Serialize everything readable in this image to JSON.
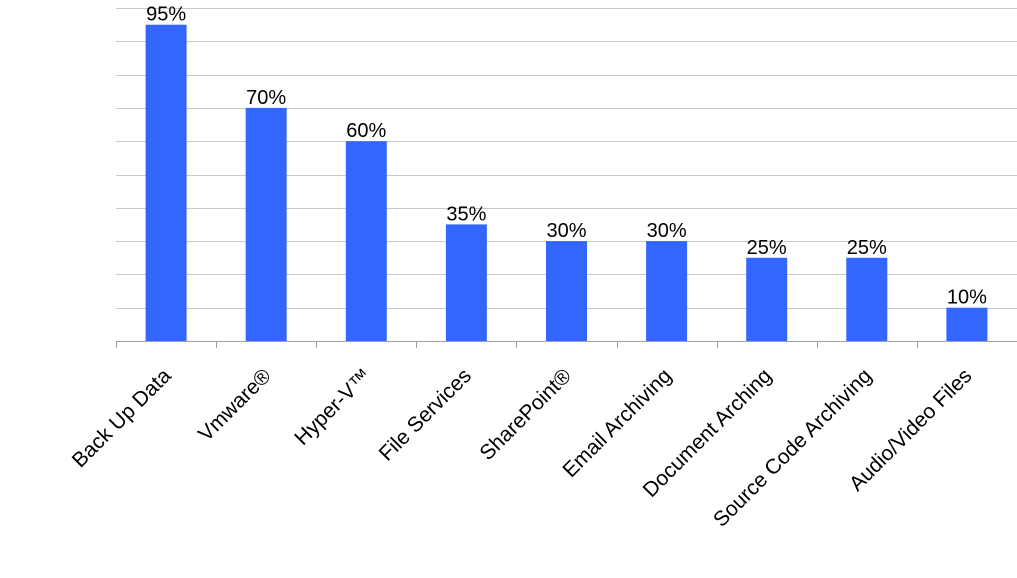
{
  "chart_data": {
    "type": "bar",
    "categories": [
      "Back Up Data",
      "Vmware®",
      "Hyper-V™",
      "File Services",
      "SharePoint®",
      "Email Archiving",
      "Document Arching",
      "Source Code Archiving",
      "Audio/Video Files"
    ],
    "values": [
      95,
      70,
      60,
      35,
      30,
      30,
      25,
      25,
      10
    ],
    "data_labels": [
      "95%",
      "70%",
      "60%",
      "35%",
      "30%",
      "30%",
      "25%",
      "25%",
      "10%"
    ],
    "ylim": [
      0,
      100
    ],
    "y_gridline_step": 10,
    "grid": true,
    "legend": "none",
    "bar_color": "#3366ff"
  }
}
